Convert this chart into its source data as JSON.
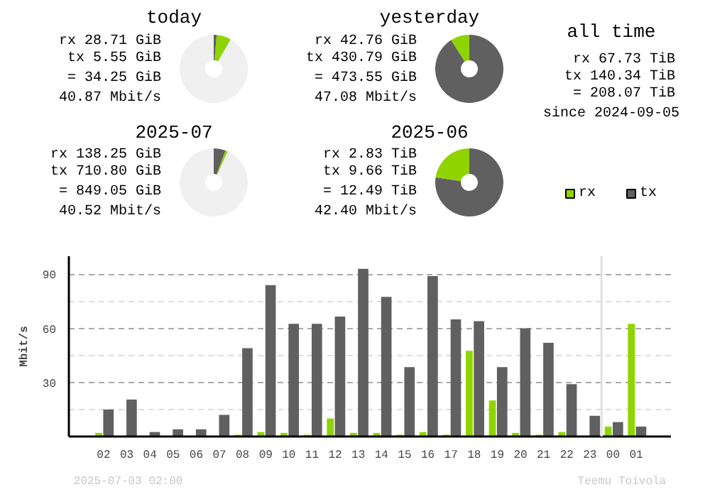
{
  "chart_data": [
    {
      "type": "donut",
      "title": "today",
      "categories": [
        null,
        null,
        null
      ],
      "values": [
        91.7,
        6.9,
        1.4
      ],
      "colors": [
        "#f0f0f0",
        "#8fd400",
        "#606060"
      ],
      "annotations": [
        "rx 28.71 GiB",
        "tx 5.55 GiB",
        "= 34.25 GiB",
        "40.87 Mbit/s"
      ]
    },
    {
      "type": "donut",
      "title": "yesterday",
      "categories": [
        null,
        null
      ],
      "values": [
        9.0,
        91.0
      ],
      "colors": [
        "#8fd400",
        "#606060"
      ],
      "annotations": [
        "rx 42.76 GiB",
        "tx 430.79 GiB",
        "= 473.55 GiB",
        "47.08 Mbit/s"
      ]
    },
    {
      "type": "other",
      "title": "all time",
      "annotations": [
        "rx 67.73 TiB",
        "tx 140.34 TiB",
        "= 208.07 TiB",
        "since 2024-09-05"
      ]
    },
    {
      "type": "donut",
      "title": "2025-07",
      "categories": [
        null,
        null,
        null
      ],
      "values": [
        93.3,
        1.1,
        5.6
      ],
      "colors": [
        "#f0f0f0",
        "#8fd400",
        "#606060"
      ],
      "annotations": [
        "rx 138.25 GiB",
        "tx 710.80 GiB",
        "= 849.05 GiB",
        "40.52 Mbit/s"
      ]
    },
    {
      "type": "donut",
      "title": "2025-06",
      "categories": [
        "rx",
        "tx"
      ],
      "values": [
        22.7,
        77.3
      ],
      "colors": [
        "#8fd400",
        "#606060"
      ],
      "legend": "right",
      "annotations": [
        "rx 2.83 TiB",
        "tx 9.66 TiB",
        "= 12.49 TiB",
        "42.40 Mbit/s"
      ]
    },
    {
      "type": "bar",
      "ylabel": "Mbit/s",
      "categories": [
        "02",
        "03",
        "04",
        "05",
        "06",
        "07",
        "08",
        "09",
        "10",
        "11",
        "12",
        "13",
        "14",
        "15",
        "16",
        "17",
        "18",
        "19",
        "20",
        "21",
        "22",
        "23",
        "00",
        "01"
      ],
      "series": [
        {
          "color": "#8fd400",
          "values": [
            2,
            0,
            0,
            0,
            0,
            0,
            1,
            2.5,
            2,
            1,
            10,
            2,
            2,
            1,
            2.5,
            1,
            47.5,
            20,
            2,
            1,
            2.5,
            0,
            5.5,
            62.5
          ]
        },
        {
          "color": "#606060",
          "values": [
            15,
            20.5,
            2.5,
            4,
            4,
            12,
            49,
            84,
            62.5,
            62.5,
            66.5,
            93,
            77.5,
            38.5,
            89,
            65,
            64,
            38.5,
            60,
            52,
            29,
            11.5,
            8,
            5.5
          ]
        }
      ],
      "ylim": [
        0,
        100
      ],
      "yticks": [
        {
          "value": 15,
          "label": null
        },
        30,
        {
          "value": 45,
          "label": null
        },
        60,
        {
          "value": 75,
          "label": null
        },
        90
      ],
      "grid": "y",
      "ref_lines": [
        {
          "axis": "x",
          "value": "00",
          "label": null,
          "color": "#e0e0e0"
        }
      ],
      "annotations": [
        "2025-07-03 02:00",
        "Teemu Toivola"
      ]
    }
  ]
}
